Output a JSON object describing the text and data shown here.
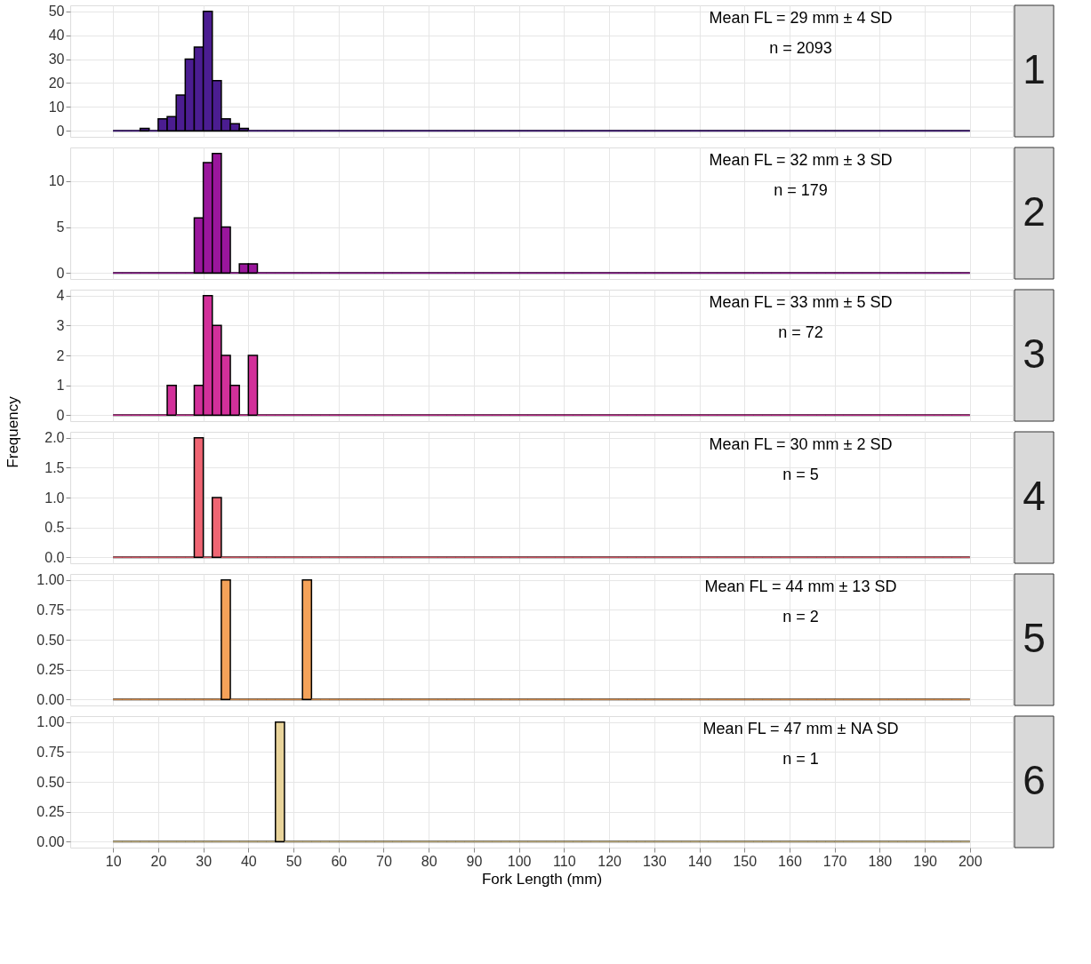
{
  "chart_data": [
    {
      "type": "histogram",
      "title": "1",
      "annotations": [
        "Mean FL = 29  mm  ± 4  SD",
        "n = 2093"
      ],
      "color": "#4b1d91",
      "tick_labels": "y",
      "grid": true,
      "xlim": [
        0.5,
        209.5
      ],
      "ylim": [
        -2.5,
        52.5
      ],
      "yticks": [
        0,
        10,
        20,
        30,
        40,
        50
      ],
      "xticks": [
        10,
        20,
        30,
        40,
        50,
        60,
        70,
        80,
        90,
        100,
        110,
        120,
        130,
        140,
        150,
        160,
        170,
        180,
        190,
        200
      ],
      "bins": [
        10,
        12,
        14,
        16,
        18,
        20,
        22,
        24,
        26,
        28,
        30,
        32,
        34,
        36,
        38,
        40,
        42,
        44,
        46,
        48,
        50,
        52,
        54,
        56,
        58,
        60,
        62,
        64,
        66,
        68,
        70,
        72,
        74,
        76,
        78,
        80,
        82,
        84,
        86,
        88,
        90,
        92,
        94,
        96,
        98,
        100,
        102,
        104,
        106,
        108,
        110,
        112,
        114,
        116,
        118,
        120,
        122,
        124,
        126,
        128,
        130,
        132,
        134,
        136,
        138,
        140,
        142,
        144,
        146,
        148,
        150,
        152,
        154,
        156,
        158,
        160,
        162,
        164,
        166,
        168,
        170,
        172,
        174,
        176,
        178,
        180,
        182,
        184,
        186,
        188,
        190,
        192,
        194,
        196,
        198,
        200
      ],
      "values": [
        0,
        0,
        0,
        1,
        0,
        5,
        6,
        15,
        30,
        35,
        50,
        21,
        5,
        3,
        1,
        0,
        0,
        0,
        0,
        0,
        0,
        0,
        0,
        0,
        0,
        0,
        0,
        0,
        0,
        0,
        0,
        0,
        0,
        0,
        0,
        0,
        0,
        0,
        0,
        0,
        0,
        0,
        0,
        0,
        0,
        0,
        0,
        0,
        0,
        0,
        0,
        0,
        0,
        0,
        0,
        0,
        0,
        0,
        0,
        0,
        0,
        0,
        0,
        0,
        0,
        0,
        0,
        0,
        0,
        0,
        0,
        0,
        0,
        0,
        0,
        0,
        0,
        0,
        0,
        0,
        0,
        0,
        0,
        0,
        0,
        0,
        0,
        0,
        0,
        0,
        0,
        0,
        0,
        0,
        0
      ]
    },
    {
      "type": "histogram",
      "title": "2",
      "annotations": [
        "Mean FL = 32  mm  ± 3  SD",
        "n = 179"
      ],
      "color": "#9a169c",
      "tick_labels": "y",
      "grid": true,
      "xlim": [
        0.5,
        209.5
      ],
      "ylim": [
        -0.65,
        13.65
      ],
      "yticks": [
        0,
        5,
        10
      ],
      "xticks": [
        10,
        20,
        30,
        40,
        50,
        60,
        70,
        80,
        90,
        100,
        110,
        120,
        130,
        140,
        150,
        160,
        170,
        180,
        190,
        200
      ],
      "bins": [
        10,
        12,
        14,
        16,
        18,
        20,
        22,
        24,
        26,
        28,
        30,
        32,
        34,
        36,
        38,
        40,
        42,
        44,
        46,
        48,
        50,
        52,
        54,
        56,
        58,
        60,
        62,
        64,
        66,
        68,
        70,
        72,
        74,
        76,
        78,
        80,
        82,
        84,
        86,
        88,
        90,
        92,
        94,
        96,
        98,
        100,
        102,
        104,
        106,
        108,
        110,
        112,
        114,
        116,
        118,
        120,
        122,
        124,
        126,
        128,
        130,
        132,
        134,
        136,
        138,
        140,
        142,
        144,
        146,
        148,
        150,
        152,
        154,
        156,
        158,
        160,
        162,
        164,
        166,
        168,
        170,
        172,
        174,
        176,
        178,
        180,
        182,
        184,
        186,
        188,
        190,
        192,
        194,
        196,
        198,
        200
      ],
      "values": [
        0,
        0,
        0,
        0,
        0,
        0,
        0,
        0,
        0,
        6,
        12,
        13,
        5,
        0,
        1,
        1,
        0,
        0,
        0,
        0,
        0,
        0,
        0,
        0,
        0,
        0,
        0,
        0,
        0,
        0,
        0,
        0,
        0,
        0,
        0,
        0,
        0,
        0,
        0,
        0,
        0,
        0,
        0,
        0,
        0,
        0,
        0,
        0,
        0,
        0,
        0,
        0,
        0,
        0,
        0,
        0,
        0,
        0,
        0,
        0,
        0,
        0,
        0,
        0,
        0,
        0,
        0,
        0,
        0,
        0,
        0,
        0,
        0,
        0,
        0,
        0,
        0,
        0,
        0,
        0,
        0,
        0,
        0,
        0,
        0,
        0,
        0,
        0,
        0,
        0,
        0,
        0,
        0,
        0,
        0
      ]
    },
    {
      "type": "histogram",
      "title": "3",
      "annotations": [
        "Mean FL = 33  mm  ± 5  SD",
        "n = 72"
      ],
      "color": "#d2309a",
      "tick_labels": "y",
      "grid": true,
      "xlim": [
        0.5,
        209.5
      ],
      "ylim": [
        -0.2,
        4.2
      ],
      "yticks": [
        0,
        1,
        2,
        3,
        4
      ],
      "xticks": [
        10,
        20,
        30,
        40,
        50,
        60,
        70,
        80,
        90,
        100,
        110,
        120,
        130,
        140,
        150,
        160,
        170,
        180,
        190,
        200
      ],
      "bins": [
        10,
        12,
        14,
        16,
        18,
        20,
        22,
        24,
        26,
        28,
        30,
        32,
        34,
        36,
        38,
        40,
        42,
        44,
        46,
        48,
        50,
        52,
        54,
        56,
        58,
        60,
        62,
        64,
        66,
        68,
        70,
        72,
        74,
        76,
        78,
        80,
        82,
        84,
        86,
        88,
        90,
        92,
        94,
        96,
        98,
        100,
        102,
        104,
        106,
        108,
        110,
        112,
        114,
        116,
        118,
        120,
        122,
        124,
        126,
        128,
        130,
        132,
        134,
        136,
        138,
        140,
        142,
        144,
        146,
        148,
        150,
        152,
        154,
        156,
        158,
        160,
        162,
        164,
        166,
        168,
        170,
        172,
        174,
        176,
        178,
        180,
        182,
        184,
        186,
        188,
        190,
        192,
        194,
        196,
        198,
        200
      ],
      "values": [
        0,
        0,
        0,
        0,
        0,
        0,
        1,
        0,
        0,
        1,
        4,
        3,
        2,
        1,
        0,
        2,
        0,
        0,
        0,
        0,
        0,
        0,
        0,
        0,
        0,
        0,
        0,
        0,
        0,
        0,
        0,
        0,
        0,
        0,
        0,
        0,
        0,
        0,
        0,
        0,
        0,
        0,
        0,
        0,
        0,
        0,
        0,
        0,
        0,
        0,
        0,
        0,
        0,
        0,
        0,
        0,
        0,
        0,
        0,
        0,
        0,
        0,
        0,
        0,
        0,
        0,
        0,
        0,
        0,
        0,
        0,
        0,
        0,
        0,
        0,
        0,
        0,
        0,
        0,
        0,
        0,
        0,
        0,
        0,
        0,
        0,
        0,
        0,
        0,
        0,
        0,
        0,
        0,
        0,
        0
      ]
    },
    {
      "type": "histogram",
      "title": "4",
      "ylabel": "Frequency",
      "annotations": [
        "Mean FL = 30  mm  ± 2  SD",
        "n = 5"
      ],
      "color": "#ef6573",
      "tick_labels": "y",
      "grid": true,
      "xlim": [
        0.5,
        209.5
      ],
      "ylim": [
        -0.1,
        2.1
      ],
      "yticks": [
        {
          "value": 0,
          "label": "0.0"
        },
        {
          "value": 0.5,
          "label": "0.5"
        },
        {
          "value": 1,
          "label": "1.0"
        },
        {
          "value": 1.5,
          "label": "1.5"
        },
        {
          "value": 2,
          "label": "2.0"
        }
      ],
      "xticks": [
        10,
        20,
        30,
        40,
        50,
        60,
        70,
        80,
        90,
        100,
        110,
        120,
        130,
        140,
        150,
        160,
        170,
        180,
        190,
        200
      ],
      "bins": [
        10,
        12,
        14,
        16,
        18,
        20,
        22,
        24,
        26,
        28,
        30,
        32,
        34,
        36,
        38,
        40,
        42,
        44,
        46,
        48,
        50,
        52,
        54,
        56,
        58,
        60,
        62,
        64,
        66,
        68,
        70,
        72,
        74,
        76,
        78,
        80,
        82,
        84,
        86,
        88,
        90,
        92,
        94,
        96,
        98,
        100,
        102,
        104,
        106,
        108,
        110,
        112,
        114,
        116,
        118,
        120,
        122,
        124,
        126,
        128,
        130,
        132,
        134,
        136,
        138,
        140,
        142,
        144,
        146,
        148,
        150,
        152,
        154,
        156,
        158,
        160,
        162,
        164,
        166,
        168,
        170,
        172,
        174,
        176,
        178,
        180,
        182,
        184,
        186,
        188,
        190,
        192,
        194,
        196,
        198,
        200
      ],
      "values": [
        0,
        0,
        0,
        0,
        0,
        0,
        0,
        0,
        0,
        2,
        0,
        1,
        0,
        0,
        0,
        0,
        0,
        0,
        0,
        0,
        0,
        0,
        0,
        0,
        0,
        0,
        0,
        0,
        0,
        0,
        0,
        0,
        0,
        0,
        0,
        0,
        0,
        0,
        0,
        0,
        0,
        0,
        0,
        0,
        0,
        0,
        0,
        0,
        0,
        0,
        0,
        0,
        0,
        0,
        0,
        0,
        0,
        0,
        0,
        0,
        0,
        0,
        0,
        0,
        0,
        0,
        0,
        0,
        0,
        0,
        0,
        0,
        0,
        0,
        0,
        0,
        0,
        0,
        0,
        0,
        0,
        0,
        0,
        0,
        0,
        0,
        0,
        0,
        0,
        0,
        0,
        0,
        0,
        0,
        0
      ]
    },
    {
      "type": "histogram",
      "title": "5",
      "annotations": [
        "Mean FL = 44  mm  ± 13  SD",
        "n = 2"
      ],
      "color": "#f4a259",
      "tick_labels": "y",
      "grid": true,
      "xlim": [
        0.5,
        209.5
      ],
      "ylim": [
        -0.05,
        1.05
      ],
      "yticks": [
        {
          "value": 0,
          "label": "0.00"
        },
        {
          "value": 0.25,
          "label": "0.25"
        },
        {
          "value": 0.5,
          "label": "0.50"
        },
        {
          "value": 0.75,
          "label": "0.75"
        },
        {
          "value": 1,
          "label": "1.00"
        }
      ],
      "xticks": [
        10,
        20,
        30,
        40,
        50,
        60,
        70,
        80,
        90,
        100,
        110,
        120,
        130,
        140,
        150,
        160,
        170,
        180,
        190,
        200
      ],
      "bins": [
        10,
        12,
        14,
        16,
        18,
        20,
        22,
        24,
        26,
        28,
        30,
        32,
        34,
        36,
        38,
        40,
        42,
        44,
        46,
        48,
        50,
        52,
        54,
        56,
        58,
        60,
        62,
        64,
        66,
        68,
        70,
        72,
        74,
        76,
        78,
        80,
        82,
        84,
        86,
        88,
        90,
        92,
        94,
        96,
        98,
        100,
        102,
        104,
        106,
        108,
        110,
        112,
        114,
        116,
        118,
        120,
        122,
        124,
        126,
        128,
        130,
        132,
        134,
        136,
        138,
        140,
        142,
        144,
        146,
        148,
        150,
        152,
        154,
        156,
        158,
        160,
        162,
        164,
        166,
        168,
        170,
        172,
        174,
        176,
        178,
        180,
        182,
        184,
        186,
        188,
        190,
        192,
        194,
        196,
        198,
        200
      ],
      "values": [
        0,
        0,
        0,
        0,
        0,
        0,
        0,
        0,
        0,
        0,
        0,
        0,
        1,
        0,
        0,
        0,
        0,
        0,
        0,
        0,
        0,
        1,
        0,
        0,
        0,
        0,
        0,
        0,
        0,
        0,
        0,
        0,
        0,
        0,
        0,
        0,
        0,
        0,
        0,
        0,
        0,
        0,
        0,
        0,
        0,
        0,
        0,
        0,
        0,
        0,
        0,
        0,
        0,
        0,
        0,
        0,
        0,
        0,
        0,
        0,
        0,
        0,
        0,
        0,
        0,
        0,
        0,
        0,
        0,
        0,
        0,
        0,
        0,
        0,
        0,
        0,
        0,
        0,
        0,
        0,
        0,
        0,
        0,
        0,
        0,
        0,
        0,
        0,
        0,
        0,
        0,
        0,
        0,
        0,
        0
      ]
    },
    {
      "type": "histogram",
      "title": "6",
      "xlabel": "Fork Length (mm)",
      "annotations": [
        "Mean FL = 47  mm  ± NA  SD",
        "n = 1"
      ],
      "color": "#e9d49b",
      "grid": true,
      "xlim": [
        0.5,
        209.5
      ],
      "ylim": [
        -0.05,
        1.05
      ],
      "yticks": [
        {
          "value": 0,
          "label": "0.00"
        },
        {
          "value": 0.25,
          "label": "0.25"
        },
        {
          "value": 0.5,
          "label": "0.50"
        },
        {
          "value": 0.75,
          "label": "0.75"
        },
        {
          "value": 1,
          "label": "1.00"
        }
      ],
      "xticks": [
        10,
        20,
        30,
        40,
        50,
        60,
        70,
        80,
        90,
        100,
        110,
        120,
        130,
        140,
        150,
        160,
        170,
        180,
        190,
        200
      ],
      "bins": [
        10,
        12,
        14,
        16,
        18,
        20,
        22,
        24,
        26,
        28,
        30,
        32,
        34,
        36,
        38,
        40,
        42,
        44,
        46,
        48,
        50,
        52,
        54,
        56,
        58,
        60,
        62,
        64,
        66,
        68,
        70,
        72,
        74,
        76,
        78,
        80,
        82,
        84,
        86,
        88,
        90,
        92,
        94,
        96,
        98,
        100,
        102,
        104,
        106,
        108,
        110,
        112,
        114,
        116,
        118,
        120,
        122,
        124,
        126,
        128,
        130,
        132,
        134,
        136,
        138,
        140,
        142,
        144,
        146,
        148,
        150,
        152,
        154,
        156,
        158,
        160,
        162,
        164,
        166,
        168,
        170,
        172,
        174,
        176,
        178,
        180,
        182,
        184,
        186,
        188,
        190,
        192,
        194,
        196,
        198,
        200
      ],
      "values": [
        0,
        0,
        0,
        0,
        0,
        0,
        0,
        0,
        0,
        0,
        0,
        0,
        0,
        0,
        0,
        0,
        0,
        0,
        1,
        0,
        0,
        0,
        0,
        0,
        0,
        0,
        0,
        0,
        0,
        0,
        0,
        0,
        0,
        0,
        0,
        0,
        0,
        0,
        0,
        0,
        0,
        0,
        0,
        0,
        0,
        0,
        0,
        0,
        0,
        0,
        0,
        0,
        0,
        0,
        0,
        0,
        0,
        0,
        0,
        0,
        0,
        0,
        0,
        0,
        0,
        0,
        0,
        0,
        0,
        0,
        0,
        0,
        0,
        0,
        0,
        0,
        0,
        0,
        0,
        0,
        0,
        0,
        0,
        0,
        0,
        0,
        0,
        0,
        0,
        0,
        0,
        0,
        0,
        0,
        0
      ]
    }
  ]
}
